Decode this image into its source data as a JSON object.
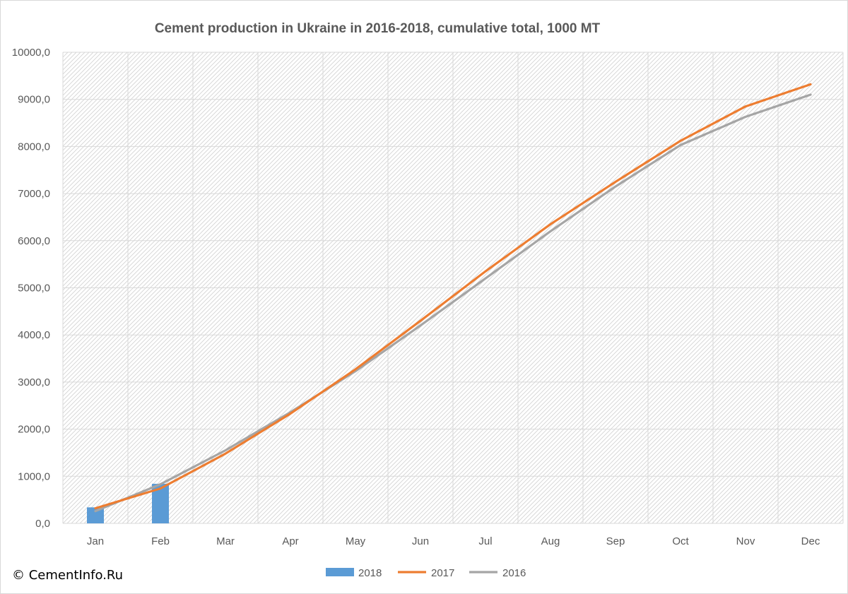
{
  "copyright": "© CementInfo.Ru",
  "chart_data": {
    "type": "bar+line",
    "title": "Cement production in Ukraine in 2016-2018, cumulative total, 1000 MT",
    "xlabel": "",
    "ylabel": "",
    "categories": [
      "Jan",
      "Feb",
      "Mar",
      "Apr",
      "May",
      "Jun",
      "Jul",
      "Aug",
      "Sep",
      "Oct",
      "Nov",
      "Dec"
    ],
    "ylim": [
      0,
      10000
    ],
    "yticks": [
      "0,0",
      "1000,0",
      "2000,0",
      "3000,0",
      "4000,0",
      "5000,0",
      "6000,0",
      "7000,0",
      "8000,0",
      "9000,0",
      "10000,0"
    ],
    "grid": true,
    "legend_position": "bottom",
    "series": [
      {
        "name": "2018",
        "kind": "bar",
        "color": "#5b9bd5",
        "values": [
          340,
          840,
          null,
          null,
          null,
          null,
          null,
          null,
          null,
          null,
          null,
          null
        ]
      },
      {
        "name": "2017",
        "kind": "line",
        "color": "#ed7d31",
        "values": [
          320,
          740,
          1480,
          2330,
          3270,
          4300,
          5350,
          6350,
          7250,
          8120,
          8850,
          9320
        ]
      },
      {
        "name": "2016",
        "kind": "line",
        "color": "#a5a5a5",
        "values": [
          260,
          830,
          1550,
          2360,
          3230,
          4200,
          5200,
          6200,
          7150,
          8030,
          8630,
          9100
        ]
      }
    ]
  }
}
